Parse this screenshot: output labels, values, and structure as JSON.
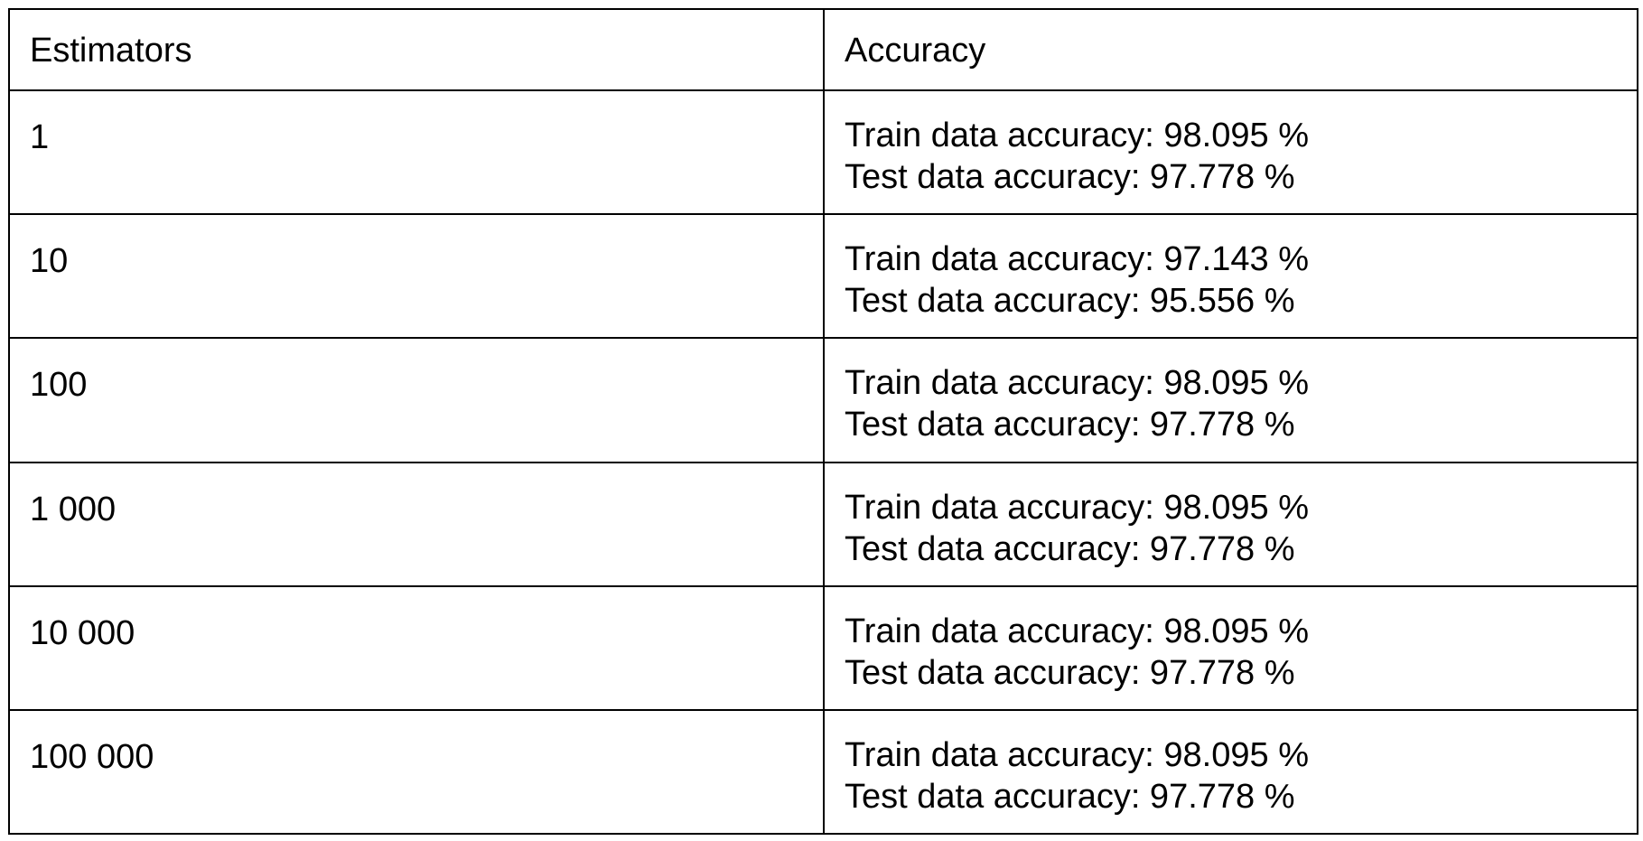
{
  "table": {
    "headers": {
      "estimators": "Estimators",
      "accuracy": "Accuracy"
    },
    "rows": [
      {
        "estimators": "1",
        "train": "Train data accuracy: 98.095 %",
        "test": "Test data accuracy: 97.778 %"
      },
      {
        "estimators": "10",
        "train": "Train data accuracy: 97.143 %",
        "test": "Test data accuracy: 95.556 %"
      },
      {
        "estimators": "100",
        "train": "Train data accuracy: 98.095 %",
        "test": "Test data accuracy: 97.778 %"
      },
      {
        "estimators": "1 000",
        "train": "Train data accuracy: 98.095 %",
        "test": "Test data accuracy: 97.778 %"
      },
      {
        "estimators": "10 000",
        "train": "Train data accuracy: 98.095 %",
        "test": "Test data accuracy: 97.778 %"
      },
      {
        "estimators": "100 000",
        "train": "Train data accuracy: 98.095 %",
        "test": "Test data accuracy: 97.778 %"
      }
    ]
  }
}
